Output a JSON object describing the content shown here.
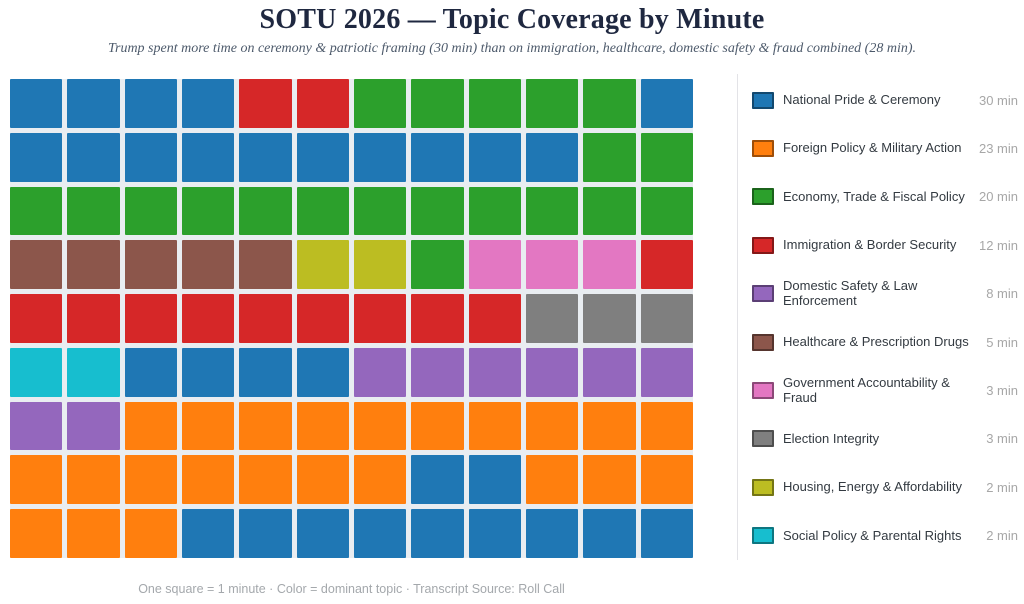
{
  "title": "SOTU 2026 — Topic Coverage by Minute",
  "subtitle": "Trump spent more time on ceremony & patriotic framing (30 min) than on immigration, healthcare, domestic safety & fraud combined (28 min).",
  "footer": "One square = 1 minute  ·  Color = dominant topic  ·  Transcript Source: Roll Call",
  "chart_data": {
    "type": "heatmap",
    "subtype": "waffle",
    "title": "SOTU 2026 — Topic Coverage by Minute",
    "unit_note": "One square = 1 minute",
    "total_minutes": 108,
    "grid": {
      "rows": 9,
      "cols": 12
    },
    "legend_position": "right",
    "gap_color": "#e9edf1",
    "topics": [
      {
        "key": "national-pride-ceremony",
        "label": "National Pride & Ceremony",
        "minutes": 30,
        "value_label": "30 min",
        "color": "#1f77b4"
      },
      {
        "key": "foreign-policy-military-action",
        "label": "Foreign Policy & Military Action",
        "minutes": 23,
        "value_label": "23 min",
        "color": "#ff7f0e"
      },
      {
        "key": "economy-trade-fiscal-policy",
        "label": "Economy, Trade & Fiscal Policy",
        "minutes": 20,
        "value_label": "20 min",
        "color": "#2ca02c"
      },
      {
        "key": "immigration-border-security",
        "label": "Immigration & Border Security",
        "minutes": 12,
        "value_label": "12 min",
        "color": "#d62728"
      },
      {
        "key": "domestic-safety-law-enforcement",
        "label": "Domestic Safety & Law Enforcement",
        "minutes": 8,
        "value_label": "8 min",
        "color": "#9467bd"
      },
      {
        "key": "healthcare-prescription-drugs",
        "label": "Healthcare & Prescription Drugs",
        "minutes": 5,
        "value_label": "5 min",
        "color": "#8c564b"
      },
      {
        "key": "government-accountability-fraud",
        "label": "Government Accountability & Fraud",
        "minutes": 3,
        "value_label": "3 min",
        "color": "#e377c2"
      },
      {
        "key": "election-integrity",
        "label": "Election Integrity",
        "minutes": 3,
        "value_label": "3 min",
        "color": "#7f7f7f"
      },
      {
        "key": "housing-energy-affordability",
        "label": "Housing, Energy & Affordability",
        "minutes": 2,
        "value_label": "2 min",
        "color": "#bcbd22"
      },
      {
        "key": "social-policy-parental-rights",
        "label": "Social Policy & Parental Rights",
        "minutes": 2,
        "value_label": "2 min",
        "color": "#17becf"
      }
    ],
    "rows": [
      [
        0,
        0,
        0,
        0,
        3,
        3,
        2,
        2,
        2,
        2,
        2,
        0
      ],
      [
        0,
        0,
        0,
        0,
        0,
        0,
        0,
        0,
        0,
        0,
        2,
        2
      ],
      [
        2,
        2,
        2,
        2,
        2,
        2,
        2,
        2,
        2,
        2,
        2,
        2
      ],
      [
        5,
        5,
        5,
        5,
        5,
        8,
        8,
        2,
        6,
        6,
        6,
        3
      ],
      [
        3,
        3,
        3,
        3,
        3,
        3,
        3,
        3,
        3,
        7,
        7,
        7
      ],
      [
        9,
        9,
        0,
        0,
        0,
        0,
        4,
        4,
        4,
        4,
        4,
        4
      ],
      [
        4,
        4,
        1,
        1,
        1,
        1,
        1,
        1,
        1,
        1,
        1,
        1
      ],
      [
        1,
        1,
        1,
        1,
        1,
        1,
        1,
        0,
        0,
        1,
        1,
        1
      ],
      [
        1,
        1,
        1,
        0,
        0,
        0,
        0,
        0,
        0,
        0,
        0,
        0
      ]
    ]
  }
}
